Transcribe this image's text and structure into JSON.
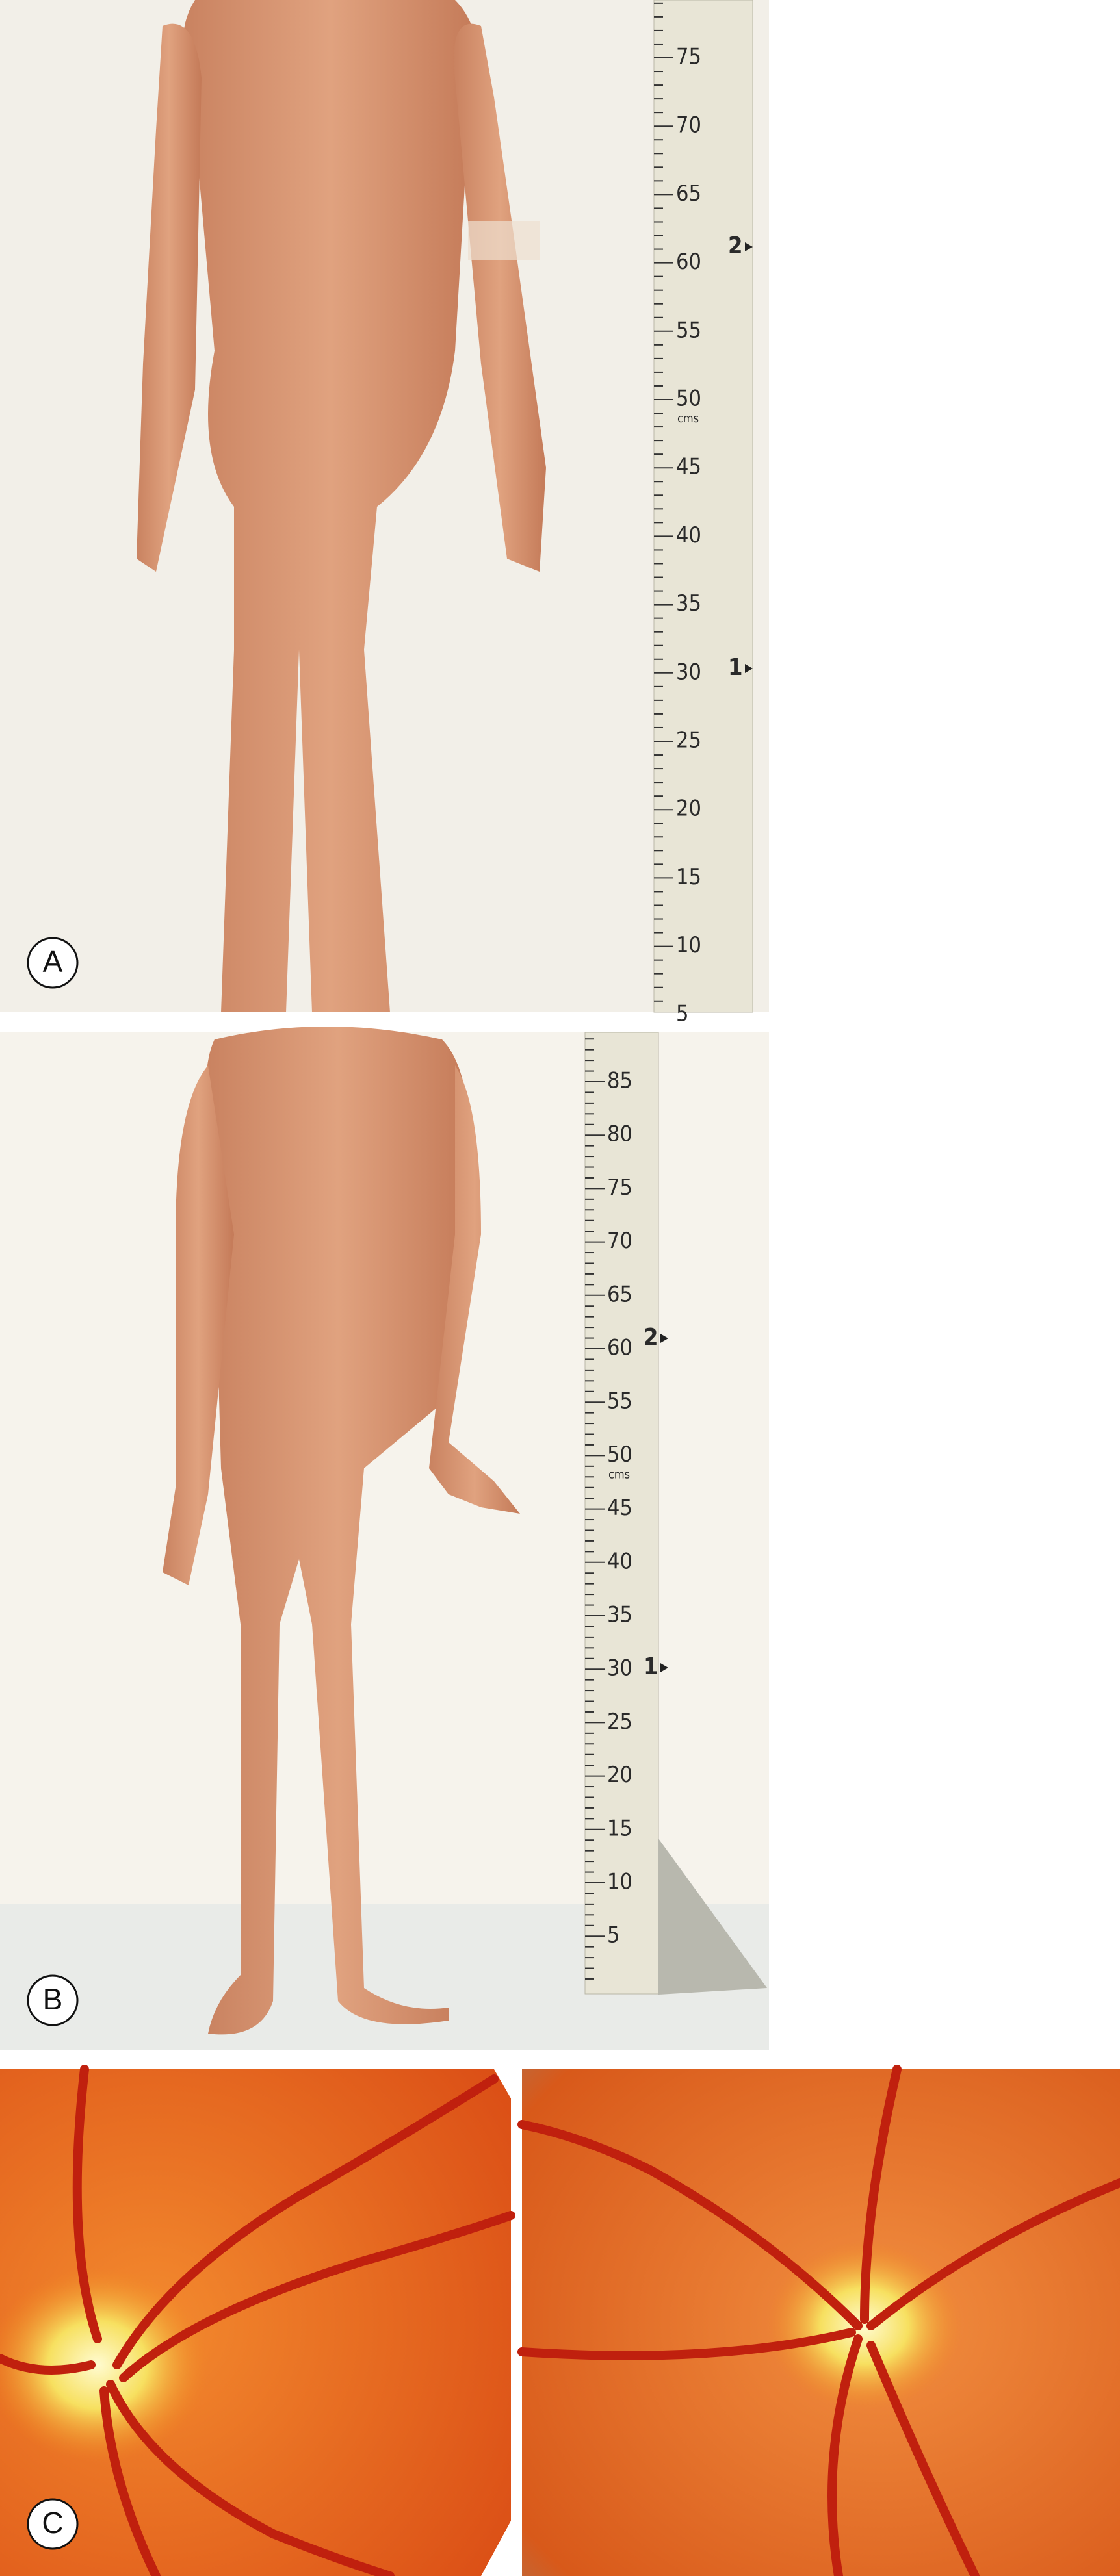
{
  "panels": [
    {
      "label": "A",
      "ruler": {
        "numbers": [
          75,
          70,
          65,
          60,
          55,
          50,
          45,
          40,
          35,
          30,
          25,
          20,
          15,
          10,
          5
        ],
        "unit": "cms",
        "markers": [
          2,
          1
        ]
      }
    },
    {
      "label": "B",
      "ruler": {
        "numbers": [
          85,
          80,
          75,
          70,
          65,
          60,
          55,
          50,
          45,
          40,
          35,
          30,
          25,
          20,
          15,
          10,
          5
        ],
        "unit": "cms",
        "markers": [
          2,
          1
        ]
      }
    },
    {
      "label": "C"
    }
  ]
}
